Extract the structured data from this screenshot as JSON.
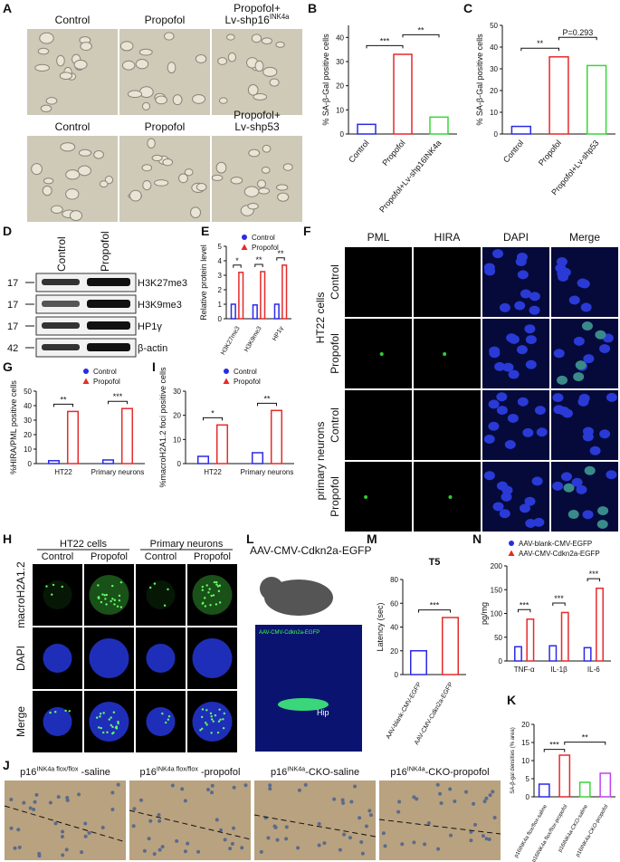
{
  "panel_letters": [
    "A",
    "B",
    "C",
    "D",
    "E",
    "F",
    "G",
    "H",
    "I",
    "J",
    "K",
    "L",
    "M",
    "N"
  ],
  "panel_a": {
    "images": [
      {
        "label": [
          "Control"
        ]
      },
      {
        "label": [
          "Propofol"
        ]
      },
      {
        "label": [
          "Propofol+",
          {
            "text": "Lv-shp16",
            "sup": "INK4a"
          }
        ]
      },
      {
        "label": [
          "Control"
        ]
      },
      {
        "label": [
          "Propofol"
        ]
      },
      {
        "label": [
          "Propofol+",
          "Lv-shp53"
        ]
      }
    ]
  },
  "panel_d": {
    "lanes": [
      "Control",
      "Propofol"
    ],
    "bands": [
      {
        "mw": "17",
        "label": "H3K27me3"
      },
      {
        "mw": "17",
        "label": "H3K9me3"
      },
      {
        "mw": "17",
        "label": "HP1γ"
      },
      {
        "mw": "42",
        "label": "β-actin"
      }
    ]
  },
  "panel_f": {
    "columns": [
      "PML",
      "HIRA",
      "DAPI",
      "Merge"
    ],
    "groups": [
      {
        "label": "HT22 cells",
        "rows": [
          "Control",
          "Propofol"
        ]
      },
      {
        "label": "primary neurons",
        "rows": [
          "Control",
          "Propofol"
        ]
      }
    ]
  },
  "panel_h": {
    "groups": [
      {
        "label": "HT22 cells",
        "columns": [
          "Control",
          "Propofol"
        ]
      },
      {
        "label": "Primary neurons",
        "columns": [
          "Control",
          "Propofol"
        ]
      }
    ],
    "rows": [
      "macroH2A1.2",
      "DAPI",
      "Merge"
    ]
  },
  "panel_l": {
    "title": "AAV-CMV-Cdkn2a-EGFP",
    "image_caption": "AAV-CMV-Cdkn2a-EGFP",
    "region": "Hip"
  },
  "panel_j": {
    "images": [
      {
        "label": [
          {
            "text": "p16",
            "sup": "INK4a flox/flox",
            "after": " -saline"
          }
        ]
      },
      {
        "label": [
          {
            "text": "p16",
            "sup": "INK4a flox/flox",
            "after": " -propofol"
          }
        ]
      },
      {
        "label": [
          {
            "text": "p16",
            "sup": "INK4a",
            "after": "-CKO-saline"
          }
        ]
      },
      {
        "label": [
          {
            "text": "p16",
            "sup": "INK4a",
            "after": "-CKO-propofol"
          }
        ]
      }
    ]
  },
  "chart_data": [
    {
      "type": "bar",
      "ylabel": "% SA-β-Gal positive cells",
      "categories": [
        "Control",
        "Propofol",
        "Propofol+Lv-shp16INK4a"
      ],
      "values": [
        4,
        33,
        7
      ],
      "bar_colors": [
        "#2a2ae6",
        "#e62a2a",
        "#39d639"
      ],
      "ylim": [
        0,
        45
      ],
      "yticks": [
        0,
        10,
        20,
        30,
        40
      ],
      "annotations": [
        {
          "text": "***",
          "between": [
            0,
            1
          ]
        },
        {
          "text": "**",
          "between": [
            1,
            2
          ]
        }
      ]
    },
    {
      "type": "bar",
      "ylabel": "% SA-β-Gal positive cells",
      "categories": [
        "Control",
        "Propofol",
        "Propofol+Lv-shp53"
      ],
      "values": [
        3.5,
        35.5,
        31.5
      ],
      "bar_colors": [
        "#2a2ae6",
        "#e62a2a",
        "#39d639"
      ],
      "ylim": [
        0,
        50
      ],
      "yticks": [
        0,
        10,
        20,
        30,
        40,
        50
      ],
      "annotations": [
        {
          "text": "**",
          "between": [
            0,
            1
          ]
        },
        {
          "text": "P=0.293",
          "between": [
            1,
            2
          ]
        }
      ]
    },
    {
      "type": "bar",
      "ylabel": "Relative protein level",
      "categories": [
        "H3K27me3",
        "H3K9me3",
        "HP1γ"
      ],
      "series": [
        {
          "name": "Control",
          "color": "#2a2ae6",
          "marker": "circle",
          "values": [
            1,
            0.95,
            1
          ]
        },
        {
          "name": "Propofol",
          "color": "#e62a2a",
          "marker": "triangle",
          "values": [
            3.2,
            3.25,
            3.7
          ]
        }
      ],
      "ylim": [
        0,
        5
      ],
      "yticks": [
        0,
        1,
        2,
        3,
        4,
        5
      ],
      "annotations": [
        {
          "text": "*",
          "category": 0
        },
        {
          "text": "**",
          "category": 1
        },
        {
          "text": "**",
          "category": 2
        }
      ]
    },
    {
      "type": "bar",
      "ylabel": "%HIRA/PML positive cells",
      "categories": [
        "HT22",
        "Primary neurons"
      ],
      "series": [
        {
          "name": "Control",
          "color": "#2a2ae6",
          "marker": "circle",
          "values": [
            2,
            2.5
          ]
        },
        {
          "name": "Propofol",
          "color": "#e62a2a",
          "marker": "triangle",
          "values": [
            36,
            38
          ]
        }
      ],
      "ylim": [
        0,
        50
      ],
      "yticks": [
        0,
        10,
        20,
        30,
        40,
        50
      ],
      "annotations": [
        {
          "text": "**",
          "category": 0
        },
        {
          "text": "***",
          "category": 1
        }
      ]
    },
    {
      "type": "bar",
      "ylabel": "%macroH2A1.2 foci positive cells",
      "categories": [
        "HT22",
        "Primary neurons"
      ],
      "series": [
        {
          "name": "Control",
          "color": "#2a2ae6",
          "marker": "circle",
          "values": [
            3,
            4.5
          ]
        },
        {
          "name": "Propofol",
          "color": "#e62a2a",
          "marker": "triangle",
          "values": [
            16,
            22
          ]
        }
      ],
      "ylim": [
        0,
        30
      ],
      "yticks": [
        0,
        10,
        20,
        30
      ],
      "annotations": [
        {
          "text": "*",
          "category": 0
        },
        {
          "text": "**",
          "category": 1
        }
      ]
    },
    {
      "type": "bar",
      "title": "T5",
      "ylabel": "Latency (sec)",
      "categories": [
        "AAV-blank-CMV-EGFP",
        "AAV-CMV-Cdkn2a-EGFP"
      ],
      "values": [
        20,
        48
      ],
      "bar_colors": [
        "#2a2ae6",
        "#e62a2a"
      ],
      "ylim": [
        0,
        80
      ],
      "yticks": [
        0,
        20,
        40,
        60,
        80
      ],
      "annotations": [
        {
          "text": "***",
          "between": [
            0,
            1
          ]
        }
      ]
    },
    {
      "type": "bar",
      "ylabel": "pg/mg",
      "categories": [
        "TNF-α",
        "IL-1β",
        "IL-6"
      ],
      "series": [
        {
          "name": "AAV-blank-CMV-EGFP",
          "color": "#2a2ae6",
          "marker": "circle",
          "values": [
            30,
            32,
            28
          ]
        },
        {
          "name": "AAV-CMV-Cdkn2a-EGFP",
          "color": "#e62a2a",
          "marker": "triangle",
          "values": [
            88,
            102,
            153
          ]
        }
      ],
      "ylim": [
        0,
        200
      ],
      "yticks": [
        0,
        50,
        100,
        150,
        200
      ],
      "annotations": [
        {
          "text": "***",
          "category": 0
        },
        {
          "text": "***",
          "category": 1
        },
        {
          "text": "***",
          "category": 2
        }
      ]
    },
    {
      "type": "bar",
      "ylabel": "SA-β-gal densities (% area)",
      "categories": [
        "p16INK4a flox/flox-saline",
        "p16INK4a flox/flox-propofol",
        "p16INK4a-CKO-saline",
        "p16INK4a-CKO-propofol"
      ],
      "values": [
        3.5,
        11.5,
        4,
        6.5
      ],
      "bar_colors": [
        "#2a2ae6",
        "#e62a2a",
        "#39d639",
        "#c040f0"
      ],
      "ylim": [
        0,
        20
      ],
      "yticks": [
        0,
        5,
        10,
        15,
        20
      ],
      "annotations": [
        {
          "text": "***",
          "between": [
            0,
            1
          ]
        },
        {
          "text": "**",
          "between": [
            1,
            3
          ]
        }
      ]
    }
  ]
}
